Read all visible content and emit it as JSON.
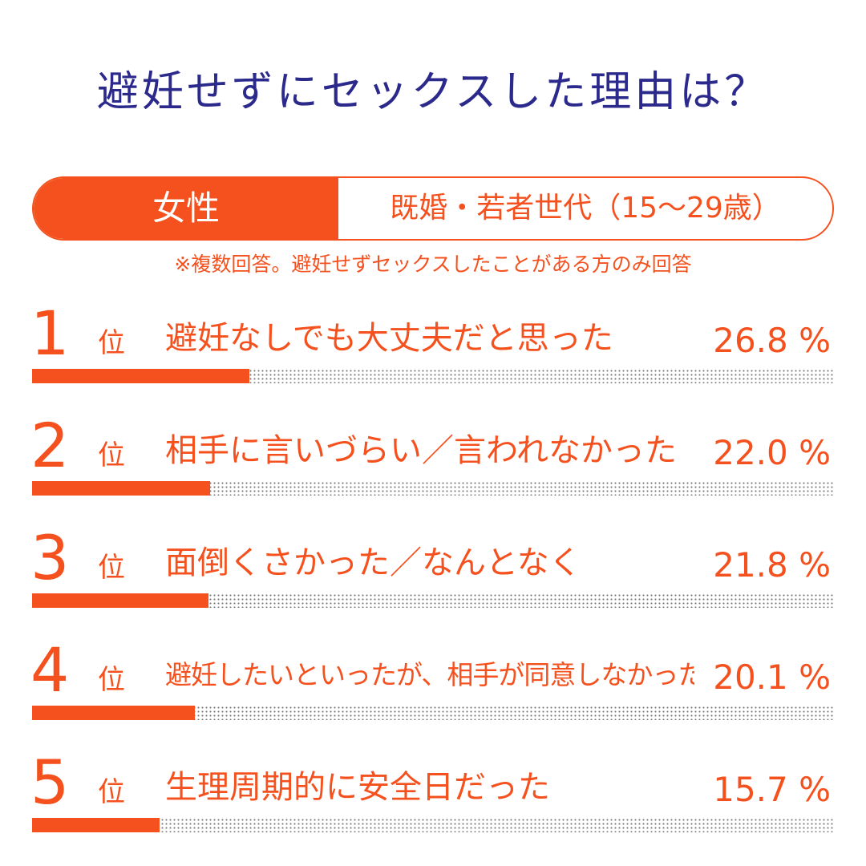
{
  "title": "避妊せずにセックスした理由は？",
  "header": {
    "gender": "女性",
    "segment": "既婚・若者世代（15～29歳）"
  },
  "note": "※複数回答。避妊せずセックスしたことがある方のみ回答",
  "rank_suffix": "位",
  "colors": {
    "accent": "#f4511e",
    "title": "#2b2a8c",
    "dots": "#777777"
  },
  "chart_data": {
    "type": "bar",
    "categories": [
      "避妊なしでも大丈夫だと思った",
      "相手に言いづらい／言われなかった",
      "面倒くさかった／なんとなく",
      "避妊したいといったが、相手が同意しなかった",
      "生理周期的に安全日だった"
    ],
    "values": [
      26.8,
      22.0,
      21.8,
      20.1,
      15.7
    ],
    "unit": "%",
    "xlim": [
      0,
      100
    ],
    "ranks": [
      "1",
      "2",
      "3",
      "4",
      "5"
    ],
    "labels": [
      "26.8 %",
      "22.0 %",
      "21.8 %",
      "20.1 %",
      "15.7 %"
    ]
  }
}
